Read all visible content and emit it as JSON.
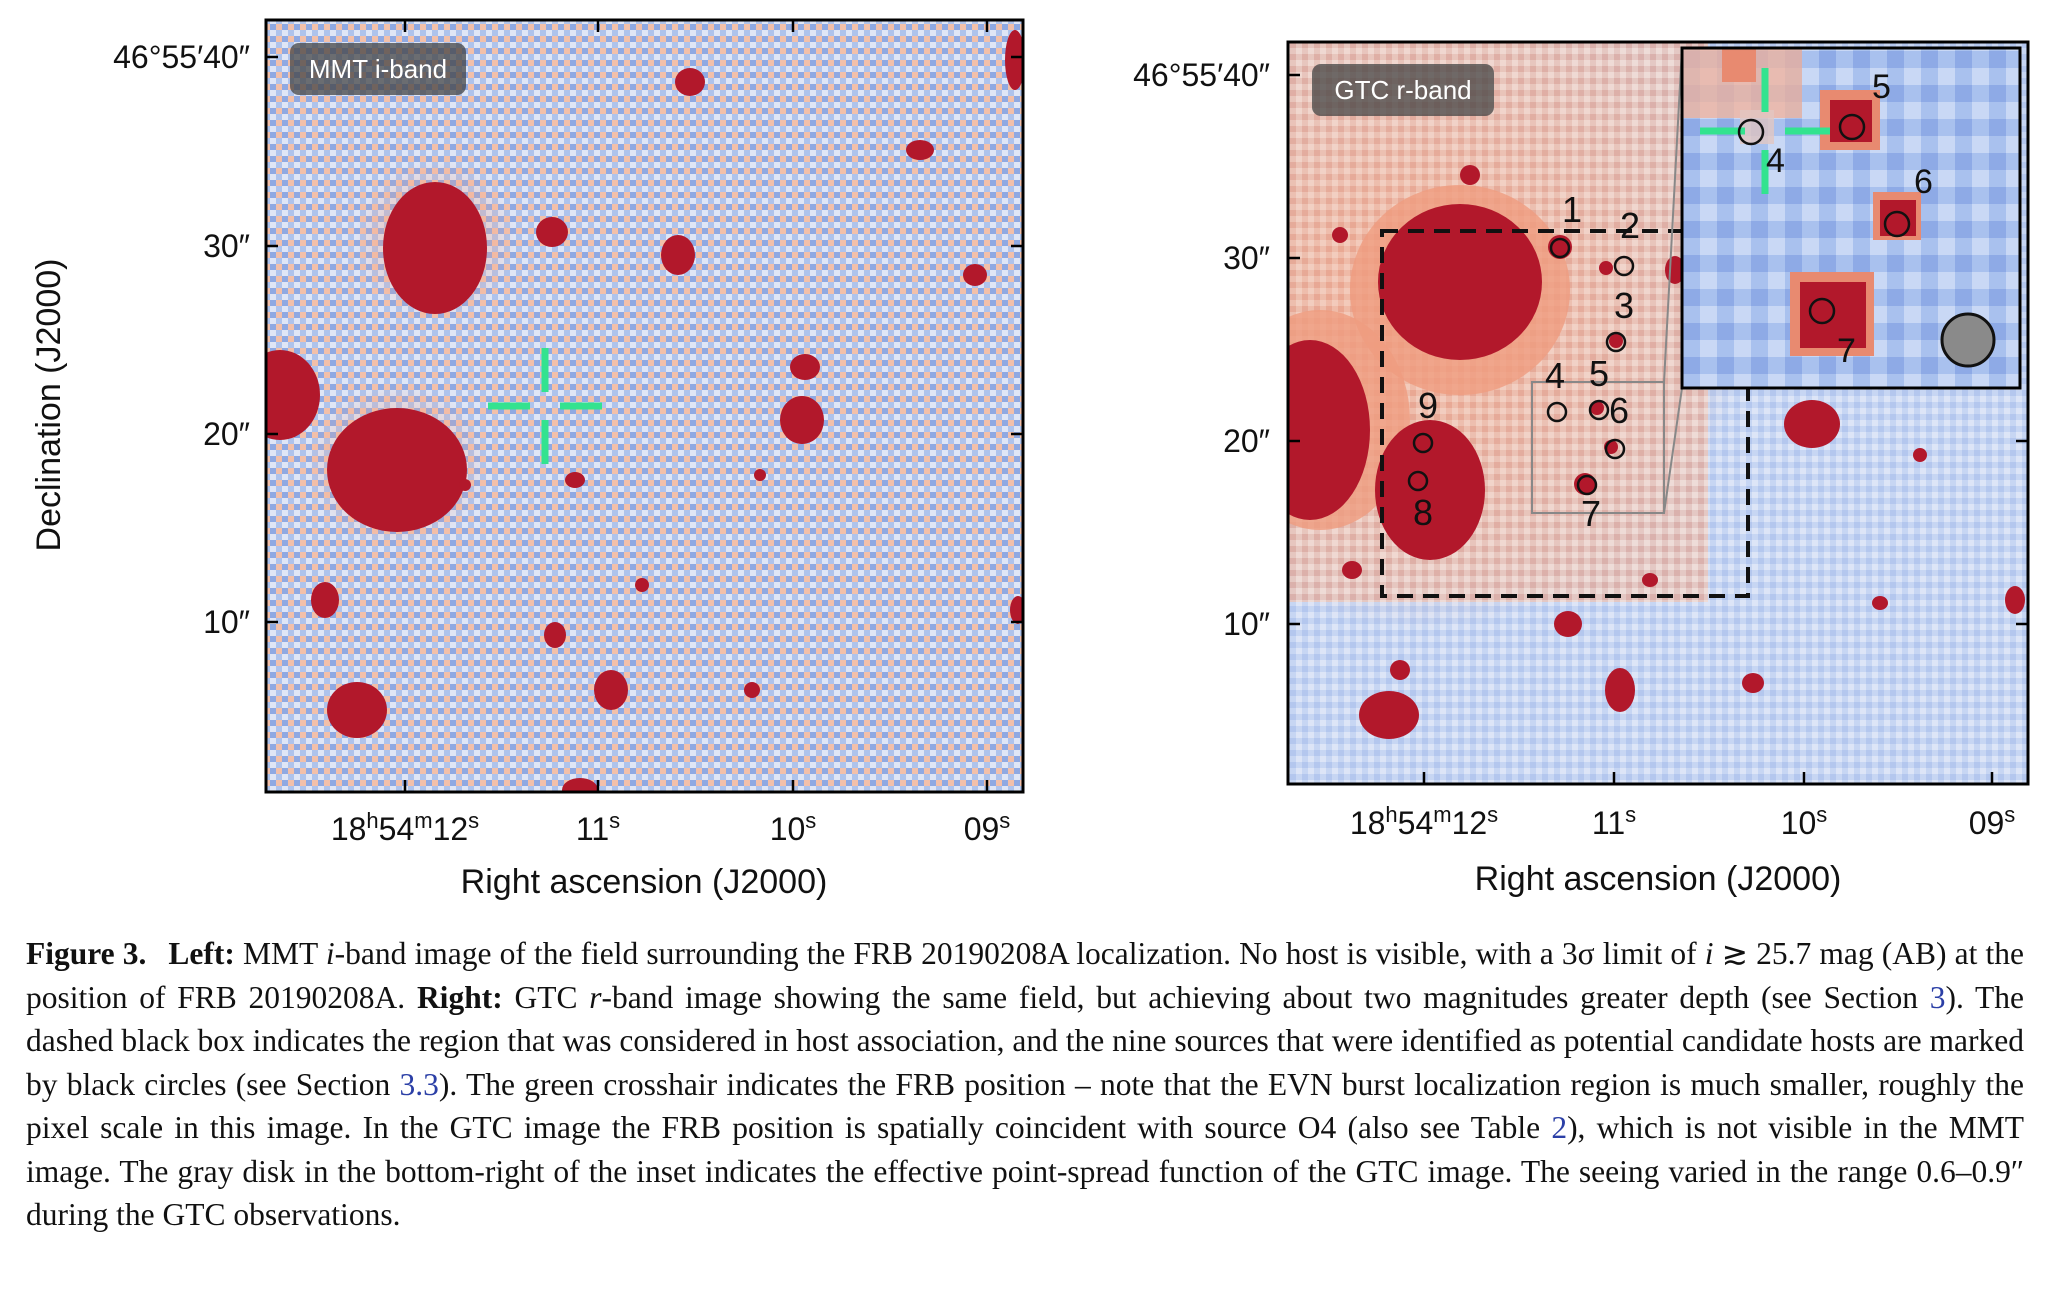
{
  "left_panel": {
    "band_label": "MMT i-band",
    "dec_ticks": [
      "46°55′40″",
      "30″",
      "20″",
      "10″"
    ],
    "ra_ticks": [
      {
        "h": "18",
        "hs": "h",
        "m": "54",
        "ms": "m",
        "s": "12",
        "ss": "s"
      },
      {
        "s": "11",
        "ss": "s"
      },
      {
        "s": "10",
        "ss": "s"
      },
      {
        "s": "09",
        "ss": "s"
      }
    ],
    "xlabel": "Right ascension (J2000)",
    "ylabel": "Declination (J2000)"
  },
  "right_panel": {
    "band_label": "GTC r-band",
    "dec_ticks": [
      "46°55′40″",
      "30″",
      "20″",
      "10″"
    ],
    "ra_ticks": [
      {
        "h": "18",
        "hs": "h",
        "m": "54",
        "ms": "m",
        "s": "12",
        "ss": "s"
      },
      {
        "s": "11",
        "ss": "s"
      },
      {
        "s": "10",
        "ss": "s"
      },
      {
        "s": "09",
        "ss": "s"
      }
    ],
    "xlabel": "Right ascension (J2000)",
    "source_labels": [
      "1",
      "2",
      "3",
      "4",
      "5",
      "6",
      "7",
      "8",
      "9"
    ],
    "inset_labels": [
      "4",
      "5",
      "6",
      "7"
    ]
  },
  "colors": {
    "source": "#b2182b",
    "crosshair": "#33e38f",
    "bg_blue": "#9fb8e8",
    "bg_red": "#f3b59b",
    "psf_disk": "#8a8a8a",
    "ref_link": "#2b3fa6"
  },
  "caption": {
    "figure_label": "Figure 3.",
    "left_head": "Left:",
    "left_text_1": "MMT ",
    "left_band": "i",
    "left_text_2": "-band image of the field surrounding the FRB 20190208A localization. No host is visible, with a 3σ limit of ",
    "limit_var": "i",
    "limit_text": " ≳ 25.7 mag (AB) at the position of FRB 20190208A.",
    "right_head": "Right:",
    "right_text_1": "GTC ",
    "right_band": "r",
    "right_text_2": "-band image showing the same field, but achieving about two magnitudes greater depth (see Section ",
    "ref_section": "3",
    "right_text_3": "). The dashed black box indicates the region that was considered in host association, and the nine sources that were identified as potential candidate hosts are marked by black circles (see Section ",
    "ref_subsection": "3.3",
    "right_text_4": "). The green crosshair indicates the FRB position – note that the EVN burst localization region is much smaller, roughly the pixel scale in this image. In the GTC image the FRB position is spatially coincident with source O4 (also see Table ",
    "ref_table": "2",
    "right_text_5": "), which is not visible in the MMT image. The gray disk in the bottom-right of the inset indicates the effective point-spread function of the GTC image. The seeing varied in the range 0.6–0.9″ during the GTC observations."
  }
}
